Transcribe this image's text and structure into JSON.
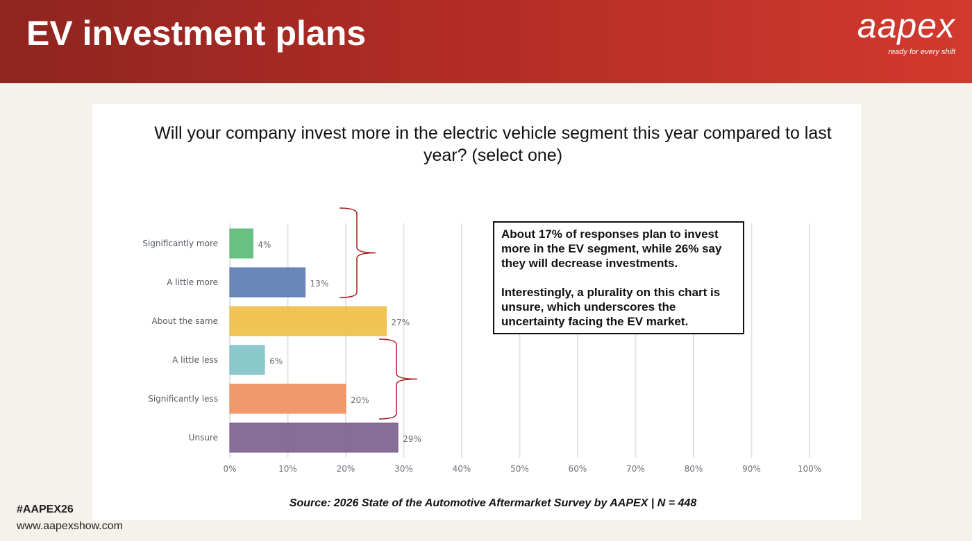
{
  "header": {
    "title": "EV investment plans",
    "logo_name": "aapex",
    "logo_tagline": "ready for every shift"
  },
  "question": "Will your company invest more in the electric vehicle segment this year compared to last year? (select one)",
  "note": {
    "p1": "About 17% of responses plan to invest more in the EV segment, while 26% say they will decrease investments.",
    "p2": "Interestingly, a plurality on this chart is unsure, which underscores the uncertainty facing the EV market."
  },
  "source": "Source: 2026 State of the Automotive Aftermarket Survey by AAPEX  | N = 448",
  "footer": {
    "hashtag": "#AAPEX26",
    "url": "www.aapexshow.com"
  },
  "chart_data": {
    "type": "bar",
    "orientation": "horizontal",
    "categories": [
      "Significantly more",
      "A little more",
      "About the same",
      "A little less",
      "Significantly less",
      "Unsure"
    ],
    "values": [
      4,
      13,
      27,
      6,
      20,
      29
    ],
    "labels": [
      "4%",
      "13%",
      "27%",
      "6%",
      "20%",
      "29%"
    ],
    "colors": [
      "#57ba76",
      "#5a7ab1",
      "#eebf42",
      "#80c3c8",
      "#ee8f5c",
      "#7a5e8b"
    ],
    "xlim": [
      0,
      100
    ],
    "xticks": [
      "0%",
      "10%",
      "20%",
      "30%",
      "40%",
      "50%",
      "60%",
      "70%",
      "80%",
      "90%",
      "100%"
    ],
    "grid": true,
    "brace_color": "#a31e22"
  }
}
